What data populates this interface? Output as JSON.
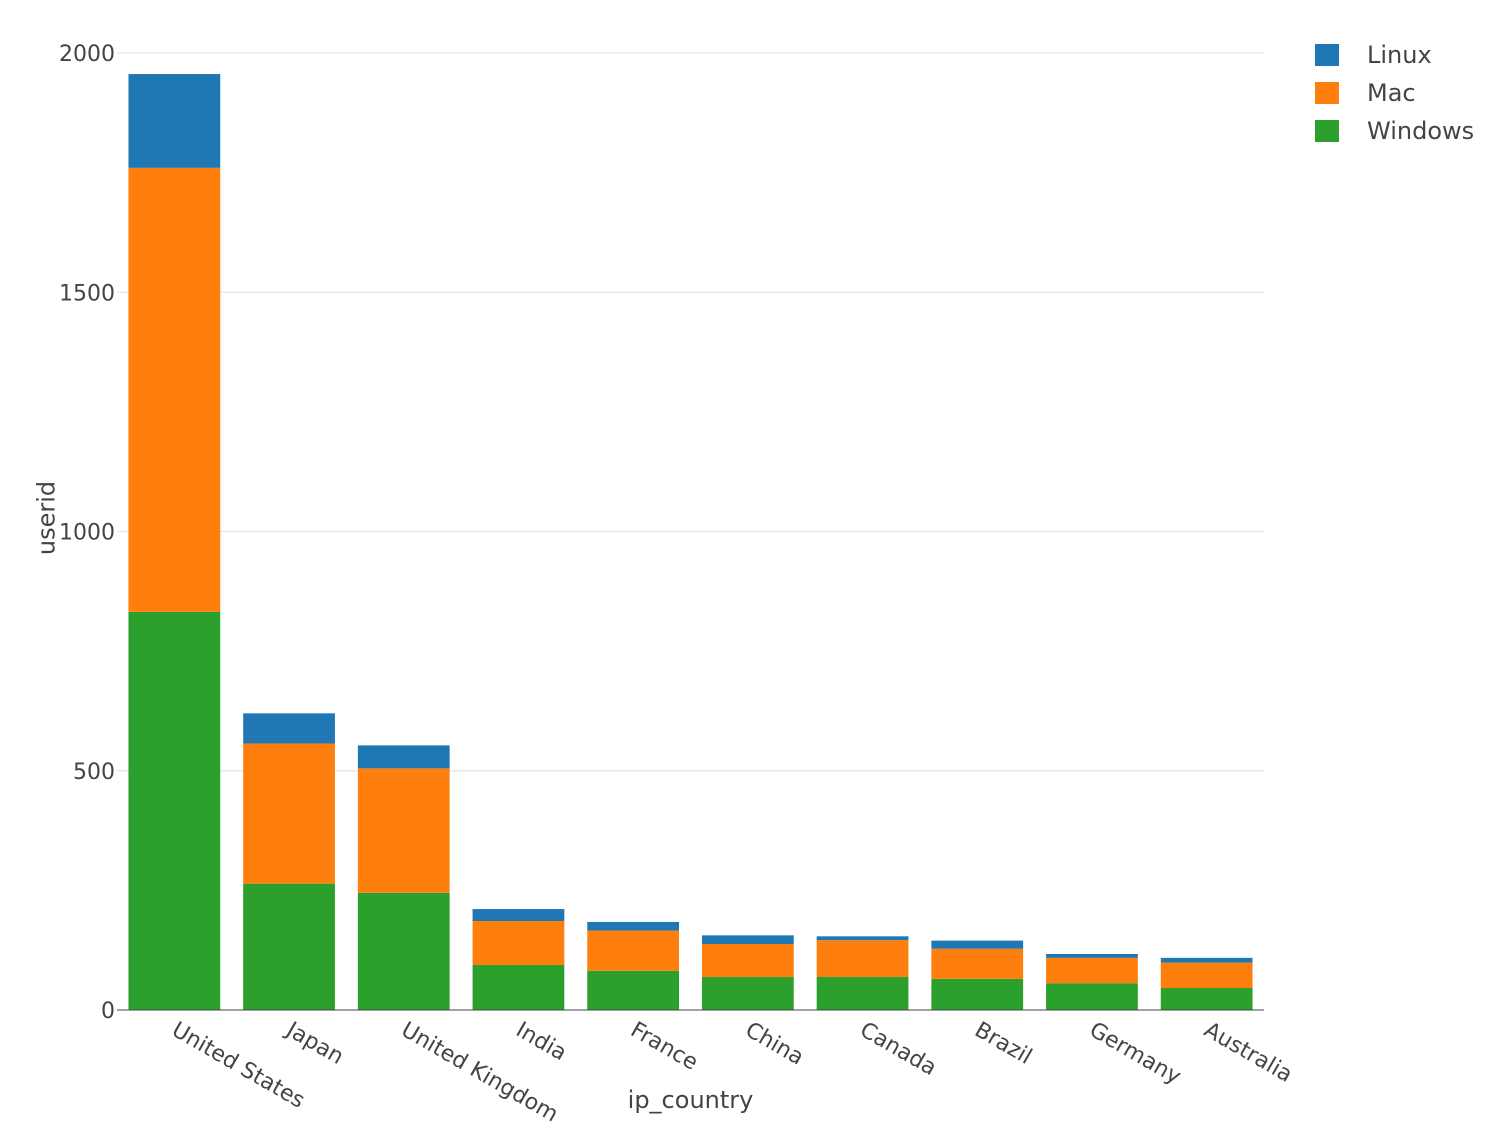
{
  "chart_data": {
    "type": "bar",
    "stacked": true,
    "xlabel": "ip_country",
    "ylabel": "userid",
    "ylim": [
      0,
      2000
    ],
    "yticks": [
      0,
      500,
      1000,
      1500,
      2000
    ],
    "grid": true,
    "legend_position": "top-right",
    "categories": [
      "United States",
      "Japan",
      "United Kingdom",
      "India",
      "France",
      "China",
      "Canada",
      "Brazil",
      "Germany",
      "Australia"
    ],
    "series": [
      {
        "name": "Windows",
        "color": "#2ca02c",
        "values": [
          832,
          264,
          245,
          94,
          82,
          69,
          69,
          65,
          56,
          46
        ]
      },
      {
        "name": "Mac",
        "color": "#ff7f0e",
        "values": [
          928,
          293,
          260,
          92,
          84,
          69,
          77,
          63,
          53,
          53
        ]
      },
      {
        "name": "Linux",
        "color": "#1f77b4",
        "values": [
          196,
          63,
          48,
          25,
          18,
          18,
          8,
          17,
          8,
          10
        ]
      }
    ],
    "legend_order": [
      "Linux",
      "Mac",
      "Windows"
    ]
  }
}
